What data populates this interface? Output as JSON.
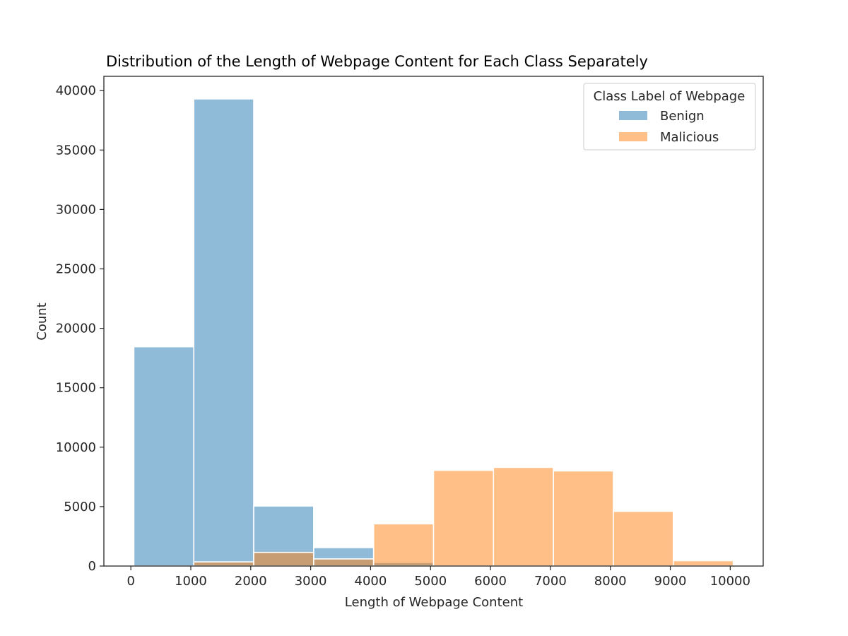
{
  "chart_data": {
    "type": "bar",
    "subtype": "overlapping-histogram",
    "title": "Distribution of the Length of Webpage Content for Each Class Separately",
    "xlabel": "Length of Webpage Content",
    "ylabel": "Count",
    "xlim": [
      -450,
      10550
    ],
    "ylim": [
      0,
      41200
    ],
    "xticks": [
      0,
      1000,
      2000,
      3000,
      4000,
      5000,
      6000,
      7000,
      8000,
      9000,
      10000
    ],
    "xtick_labels": [
      "0",
      "1000",
      "2000",
      "3000",
      "4000",
      "5000",
      "6000",
      "7000",
      "8000",
      "9000",
      "10000"
    ],
    "yticks": [
      0,
      5000,
      10000,
      15000,
      20000,
      25000,
      30000,
      35000,
      40000
    ],
    "ytick_labels": [
      "0",
      "5000",
      "10000",
      "15000",
      "20000",
      "25000",
      "30000",
      "35000",
      "40000"
    ],
    "bin_edges": [
      50,
      1050,
      2050,
      3050,
      4050,
      5050,
      6050,
      7050,
      8050,
      9050,
      10050
    ],
    "grid": false,
    "legend_title": "Class Label of Webpage",
    "legend_position": "upper right",
    "series": [
      {
        "name": "Benign",
        "color": "#1f77b4",
        "values": [
          18450,
          39300,
          5050,
          1550,
          300,
          0,
          0,
          0,
          0,
          0
        ]
      },
      {
        "name": "Malicious",
        "color": "#ff7f0e",
        "values": [
          0,
          350,
          1150,
          600,
          3550,
          8050,
          8300,
          8000,
          4600,
          450
        ]
      }
    ]
  }
}
